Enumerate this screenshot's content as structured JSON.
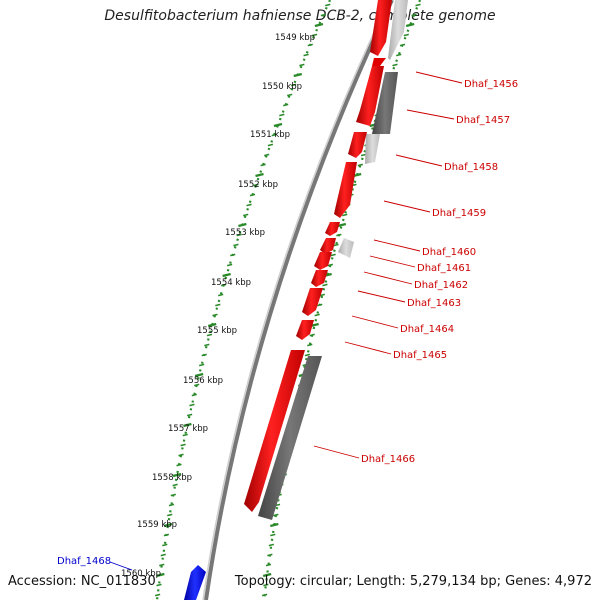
{
  "title": "Desulfitobacterium hafniense DCB-2, complete genome",
  "footer": {
    "accession": "Accession: NC_011830",
    "topology": "Topology: circular; Length: 5,279,134 bp; Genes: 4,972"
  },
  "colors": {
    "forward_gene": "#ff0000",
    "reverse_gene": "#666666",
    "light_gene": "#c8c8c8",
    "highlight_gene": "#0000ff",
    "tick": "#2a8a2a",
    "label_red": "#cc0000",
    "label_blue": "#0000cc",
    "backbone": "#888888"
  },
  "scale": {
    "unit": "kbp",
    "ticks": [
      "1549 kbp",
      "1550 kbp",
      "1551 kbp",
      "1552 kbp",
      "1553 kbp",
      "1554 kbp",
      "1555 kbp",
      "1556 kbp",
      "1557 kbp",
      "1558 kbp",
      "1559 kbp",
      "1560 kbp"
    ]
  },
  "genes": [
    {
      "label": "Dhaf_1456",
      "strand": "reverse"
    },
    {
      "label": "Dhaf_1457",
      "strand": "forward"
    },
    {
      "label": "Dhaf_1458",
      "strand": "forward"
    },
    {
      "label": "Dhaf_1459",
      "strand": "forward"
    },
    {
      "label": "Dhaf_1460",
      "strand": "forward"
    },
    {
      "label": "Dhaf_1461",
      "strand": "reverse"
    },
    {
      "label": "Dhaf_1462",
      "strand": "forward"
    },
    {
      "label": "Dhaf_1463",
      "strand": "forward"
    },
    {
      "label": "Dhaf_1464",
      "strand": "forward"
    },
    {
      "label": "Dhaf_1465",
      "strand": "forward"
    },
    {
      "label": "Dhaf_1466",
      "strand": "forward"
    },
    {
      "label": "Dhaf_1468",
      "strand": "forward"
    }
  ]
}
